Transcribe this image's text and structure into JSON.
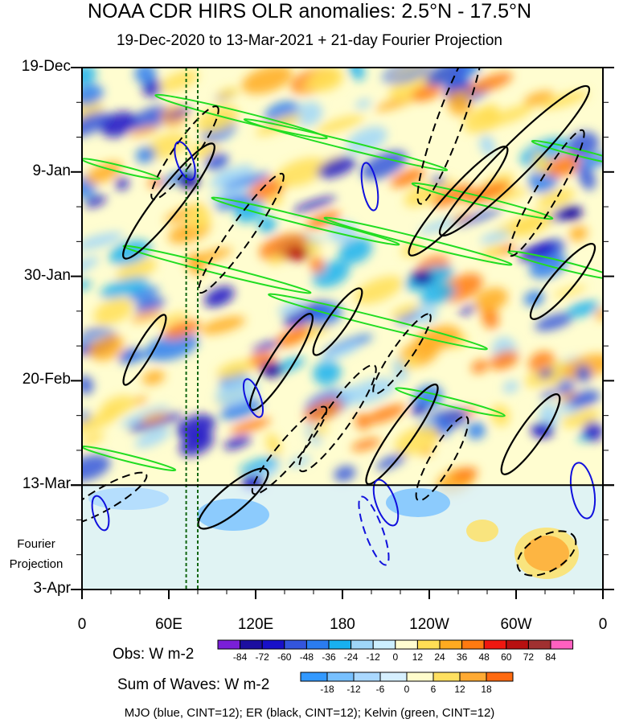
{
  "title": "NOAA CDR HIRS OLR anomalies: 2.5°N - 17.5°N",
  "subtitle": "19-Dec-2020 to 13-Mar-2021 + 21-day Fourier Projection",
  "fourier_label": [
    "Fourier",
    "Projection"
  ],
  "footnote": "MJO (blue, CINT=12); ER (black, CINT=12); Kelvin (green, CINT=12)",
  "chart_data": {
    "type": "heatmap",
    "xlabel": "",
    "ylabel": "",
    "x_ticks": [
      "0",
      "60E",
      "120E",
      "180",
      "120W",
      "60W",
      "0"
    ],
    "x_tick_values": [
      0,
      60,
      120,
      180,
      240,
      300,
      360
    ],
    "y_ticks": [
      "19-Dec",
      "9-Jan",
      "30-Jan",
      "20-Feb",
      "13-Mar",
      "3-Apr"
    ],
    "y_tick_days": [
      0,
      21,
      42,
      63,
      84,
      105
    ],
    "xlim": [
      0,
      360
    ],
    "ylim": [
      "19-Dec",
      "3-Apr"
    ],
    "observation_end": "13-Mar",
    "reference_lines_lon": [
      72,
      80
    ],
    "colorbars": [
      {
        "label": "Obs: W m-2",
        "levels": [
          "-84",
          "-72",
          "-60",
          "-48",
          "-36",
          "-24",
          "-12",
          "0",
          "12",
          "24",
          "36",
          "48",
          "60",
          "72",
          "84"
        ],
        "colors": [
          "#7a1fd8",
          "#1c0fa0",
          "#1810c8",
          "#3355dd",
          "#2a7cf0",
          "#18b0f0",
          "#9fd6f8",
          "#ccefff",
          "#fffdd0",
          "#ffde55",
          "#ffaa20",
          "#ff7a10",
          "#f01810",
          "#b81010",
          "#a03030",
          "#ff60c0"
        ]
      },
      {
        "label": "Sum of Waves: W m-2",
        "levels": [
          "-18",
          "-12",
          "-6",
          "0",
          "6",
          "12",
          "18"
        ],
        "colors": [
          "#3399ff",
          "#77c0ff",
          "#aad8ff",
          "#d6efff",
          "#fffccc",
          "#ffe060",
          "#ffaa33",
          "#ff6a10"
        ]
      }
    ],
    "wave_overlays": [
      {
        "name": "MJO",
        "color": "blue",
        "cint": 12
      },
      {
        "name": "ER",
        "color": "black",
        "cint": 12
      },
      {
        "name": "Kelvin",
        "color": "green",
        "cint": 12
      }
    ]
  }
}
